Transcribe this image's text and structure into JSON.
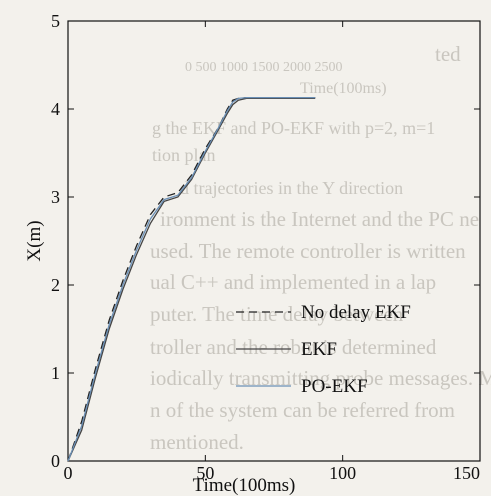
{
  "background_text": [
    "ted",
    "0 500 1000 1500 2000 2500",
    "Time(100ms)",
    "g the EKF and PO-EKF with p=2, m=1",
    "tion plan",
    "d trajectories in the Y direction",
    "ironment is the Internet and the PC ne",
    "used. The remote controller is written",
    "ual C++ and implemented in a lap",
    "puter. The time delay between",
    "troller and the robot is determined",
    "iodically transmitting probe messages. M",
    "n of the system can be referred from",
    "mentioned."
  ],
  "chart_data": {
    "type": "line",
    "xlabel": "Time(100ms)",
    "ylabel": "X(m)",
    "xlim": [
      0,
      150
    ],
    "ylim": [
      0,
      5
    ],
    "xticks": [
      "0",
      "50",
      "100",
      "150"
    ],
    "yticks": [
      "0",
      "1",
      "2",
      "3",
      "4",
      "5"
    ],
    "grid": false,
    "legend_position": "center-right",
    "series": [
      {
        "name": "No delay EKF",
        "color": "#222222",
        "dash": "8,5",
        "x": [
          0,
          5,
          10,
          15,
          20,
          25,
          30,
          35,
          40,
          45,
          50,
          55,
          58,
          60,
          62,
          65,
          70,
          75,
          80,
          85,
          90
        ],
        "y": [
          0,
          0.45,
          1.05,
          1.6,
          2.05,
          2.45,
          2.8,
          3.0,
          3.05,
          3.25,
          3.55,
          3.8,
          4.0,
          4.1,
          4.12,
          4.13,
          4.13,
          4.13,
          4.13,
          4.13,
          4.13
        ]
      },
      {
        "name": "EKF",
        "color": "#444444",
        "dash": "",
        "x": [
          0,
          5,
          10,
          15,
          20,
          25,
          30,
          35,
          40,
          45,
          50,
          55,
          58,
          60,
          62,
          65,
          70,
          75,
          80,
          85,
          90
        ],
        "y": [
          0,
          0.35,
          0.95,
          1.5,
          1.95,
          2.35,
          2.7,
          2.95,
          3.0,
          3.2,
          3.5,
          3.78,
          3.95,
          4.05,
          4.1,
          4.12,
          4.12,
          4.12,
          4.12,
          4.12,
          4.12
        ]
      },
      {
        "name": "PO-EKF",
        "color": "#6a8fb5",
        "dash": "",
        "x": [
          0,
          5,
          10,
          15,
          20,
          25,
          30,
          35,
          40,
          45,
          50,
          55,
          58,
          60,
          62,
          65,
          70,
          75,
          80,
          85,
          90
        ],
        "y": [
          0,
          0.4,
          1.0,
          1.55,
          2.0,
          2.4,
          2.75,
          2.97,
          3.02,
          3.22,
          3.52,
          3.8,
          3.98,
          4.08,
          4.12,
          4.13,
          4.13,
          4.13,
          4.13,
          4.13,
          4.13
        ]
      }
    ]
  }
}
